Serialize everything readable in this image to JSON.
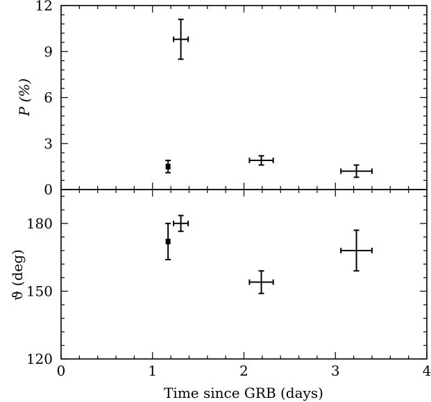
{
  "chart_data": [
    {
      "type": "scatter",
      "panel": "top",
      "xlabel": "",
      "ylabel": "P (%)",
      "xlim": [
        0,
        4
      ],
      "ylim": [
        0,
        12
      ],
      "yticks": [
        0,
        3,
        6,
        9,
        12
      ],
      "ytick_labels": [
        "0",
        "3",
        "6",
        "9",
        "12"
      ],
      "grid": false,
      "series": [
        {
          "marker": "square",
          "points": [
            {
              "x": 1.17,
              "y": 1.5,
              "xerr": 0.0,
              "yerr": 0.4
            }
          ]
        },
        {
          "marker": "errorbar",
          "points": [
            {
              "x": 1.31,
              "y": 9.8,
              "xerr": 0.08,
              "yerr": 1.3
            },
            {
              "x": 2.19,
              "y": 1.9,
              "xerr": 0.13,
              "yerr": 0.3
            },
            {
              "x": 3.23,
              "y": 1.2,
              "xerr": 0.17,
              "yerr": 0.4
            }
          ]
        }
      ]
    },
    {
      "type": "scatter",
      "panel": "bottom",
      "xlabel": "Time since GRB (days)",
      "ylabel": "ϑ (deg)",
      "xlim": [
        0,
        4
      ],
      "ylim": [
        120,
        195
      ],
      "xticks": [
        0,
        1,
        2,
        3,
        4
      ],
      "xtick_labels": [
        "0",
        "1",
        "2",
        "3",
        "4"
      ],
      "yticks": [
        120,
        150,
        180
      ],
      "ytick_labels": [
        "120",
        "150",
        "180"
      ],
      "grid": false,
      "series": [
        {
          "marker": "square",
          "points": [
            {
              "x": 1.17,
              "y": 172,
              "xerr": 0.0,
              "yerr": 8
            }
          ]
        },
        {
          "marker": "errorbar",
          "points": [
            {
              "x": 1.31,
              "y": 180,
              "xerr": 0.08,
              "yerr": 3.5
            },
            {
              "x": 2.19,
              "y": 154,
              "xerr": 0.13,
              "yerr": 5
            },
            {
              "x": 3.23,
              "y": 168,
              "xerr": 0.17,
              "yerr": 9
            }
          ]
        }
      ]
    }
  ]
}
